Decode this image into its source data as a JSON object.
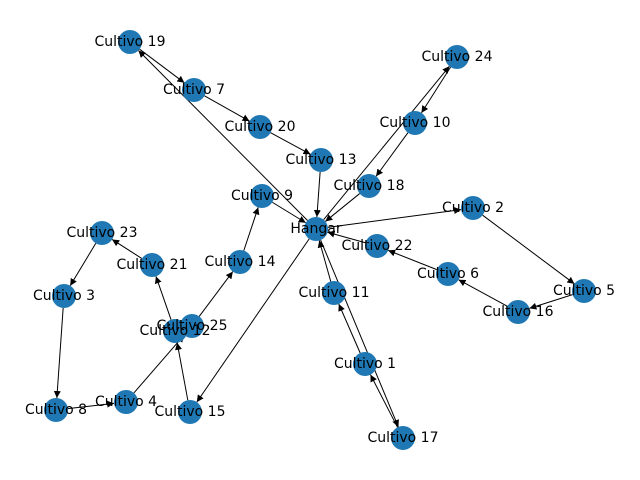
{
  "graph": {
    "node_color": "#1f78b4",
    "edge_color": "#000000",
    "nodes": [
      {
        "id": "hangar",
        "label": "Hangar"
      },
      {
        "id": "c1",
        "label": "Cultivo 1"
      },
      {
        "id": "c2",
        "label": "Cultivo 2"
      },
      {
        "id": "c3",
        "label": "Cultivo 3"
      },
      {
        "id": "c4",
        "label": "Cultivo 4"
      },
      {
        "id": "c5",
        "label": "Cultivo 5"
      },
      {
        "id": "c6",
        "label": "Cultivo 6"
      },
      {
        "id": "c7",
        "label": "Cultivo 7"
      },
      {
        "id": "c8",
        "label": "Cultivo 8"
      },
      {
        "id": "c9",
        "label": "Cultivo 9"
      },
      {
        "id": "c10",
        "label": "Cultivo 10"
      },
      {
        "id": "c11",
        "label": "Cultivo 11"
      },
      {
        "id": "c12",
        "label": "Cultivo 12"
      },
      {
        "id": "c13",
        "label": "Cultivo 13"
      },
      {
        "id": "c14",
        "label": "Cultivo 14"
      },
      {
        "id": "c15",
        "label": "Cultivo 15"
      },
      {
        "id": "c16",
        "label": "Cultivo 16"
      },
      {
        "id": "c17",
        "label": "Cultivo 17"
      },
      {
        "id": "c18",
        "label": "Cultivo 18"
      },
      {
        "id": "c19",
        "label": "Cultivo 19"
      },
      {
        "id": "c20",
        "label": "Cultivo 20"
      },
      {
        "id": "c21",
        "label": "Cultivo 21"
      },
      {
        "id": "c22",
        "label": "Cultivo 22"
      },
      {
        "id": "c23",
        "label": "Cultivo 23"
      },
      {
        "id": "c24",
        "label": "Cultivo 24"
      },
      {
        "id": "c25",
        "label": "Cultivo 25"
      }
    ],
    "edges": [
      {
        "from": "hangar",
        "to": "c2"
      },
      {
        "from": "c2",
        "to": "c5"
      },
      {
        "from": "c5",
        "to": "c16"
      },
      {
        "from": "c16",
        "to": "c6"
      },
      {
        "from": "c6",
        "to": "c22"
      },
      {
        "from": "c22",
        "to": "hangar"
      },
      {
        "from": "hangar",
        "to": "c24"
      },
      {
        "from": "c24",
        "to": "c10"
      },
      {
        "from": "c10",
        "to": "c18"
      },
      {
        "from": "c18",
        "to": "hangar"
      },
      {
        "from": "hangar",
        "to": "c19"
      },
      {
        "from": "c19",
        "to": "c7"
      },
      {
        "from": "c7",
        "to": "c20"
      },
      {
        "from": "c20",
        "to": "c13"
      },
      {
        "from": "c13",
        "to": "hangar"
      },
      {
        "from": "hangar",
        "to": "c15"
      },
      {
        "from": "c15",
        "to": "c12"
      },
      {
        "from": "c12",
        "to": "c21"
      },
      {
        "from": "c21",
        "to": "c23"
      },
      {
        "from": "c23",
        "to": "c3"
      },
      {
        "from": "c3",
        "to": "c8"
      },
      {
        "from": "c8",
        "to": "c4"
      },
      {
        "from": "c4",
        "to": "c25"
      },
      {
        "from": "c25",
        "to": "c14"
      },
      {
        "from": "c14",
        "to": "c9"
      },
      {
        "from": "c9",
        "to": "hangar"
      },
      {
        "from": "hangar",
        "to": "c17"
      },
      {
        "from": "c17",
        "to": "c1"
      },
      {
        "from": "c1",
        "to": "c11"
      },
      {
        "from": "c11",
        "to": "hangar"
      }
    ]
  }
}
